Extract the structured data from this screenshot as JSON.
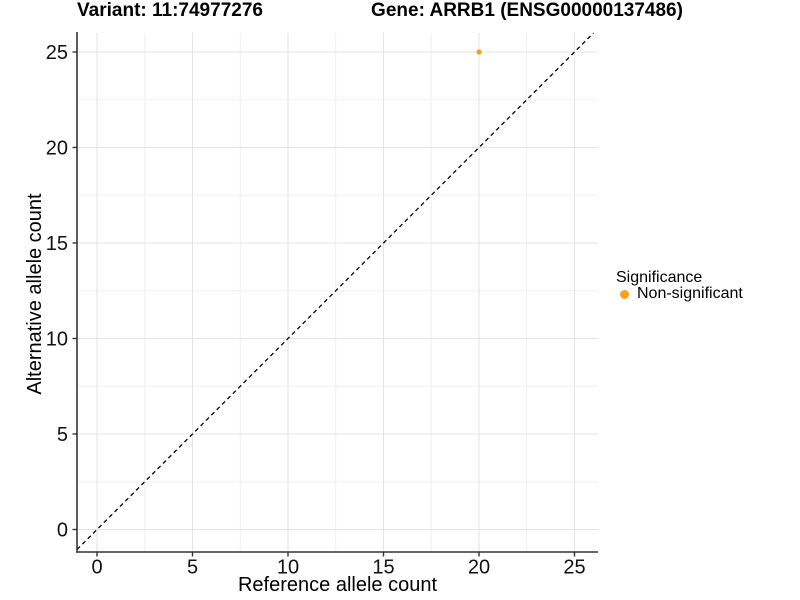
{
  "titles": {
    "variant": "Variant: 11:74977276",
    "gene": "Gene: ARRB1 (ENSG00000137486)"
  },
  "chart_data": {
    "type": "scatter",
    "xlabel": "Reference allele count",
    "ylabel": "Alternative allele count",
    "xticks": [
      0,
      5,
      10,
      15,
      20,
      25
    ],
    "yticks": [
      0,
      5,
      10,
      15,
      20,
      25
    ],
    "xminor": [
      2.5,
      7.5,
      12.5,
      17.5,
      22.5
    ],
    "yminor": [
      2.5,
      7.5,
      12.5,
      17.5,
      22.5
    ],
    "xlim": [
      -1.15,
      26.2
    ],
    "ylim": [
      -1.18,
      26.0
    ],
    "grid": true,
    "identity_line": {
      "style": "dashed",
      "color": "#000000",
      "slope": 1,
      "intercept": 0
    },
    "series": [
      {
        "name": "Non-significant",
        "color": "#F9A11B",
        "points": [
          [
            20,
            25
          ]
        ]
      }
    ],
    "legend": {
      "title": "Significance",
      "position": "right",
      "items": [
        {
          "label": "Non-significant",
          "color": "#F9A11B"
        }
      ]
    },
    "style": {
      "grid_major": "#E4E4E4",
      "grid_minor": "#F0F0F0",
      "axis": "#333333",
      "tick_label_color": "#111111",
      "background": "#FFFFFF"
    }
  }
}
